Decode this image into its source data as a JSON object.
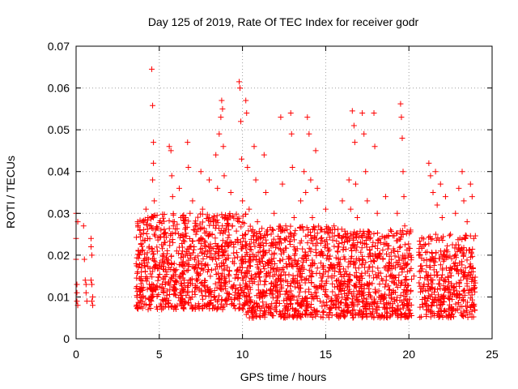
{
  "chart_data": {
    "type": "scatter",
    "title": "Day 125 of 2019, Rate Of TEC Index for receiver godr",
    "xlabel": "GPS time / hours",
    "ylabel": "ROTI / TECUs",
    "xlim": [
      0,
      25
    ],
    "ylim": [
      0,
      0.07
    ],
    "xticks": [
      0,
      5,
      10,
      15,
      20,
      25
    ],
    "xtick_labels": [
      "0",
      "5",
      "10",
      "15",
      "20",
      "25"
    ],
    "yticks": [
      0,
      0.01,
      0.02,
      0.03,
      0.04,
      0.05,
      0.06,
      0.07
    ],
    "ytick_labels": [
      "0",
      "0.01",
      "0.02",
      "0.03",
      "0.04",
      "0.05",
      "0.06",
      "0.07"
    ],
    "grid": true,
    "marker": "+",
    "color": "#ff0000",
    "series": [
      {
        "name": "ROTI",
        "points": [
          [
            0.0,
            0.03
          ],
          [
            0.0,
            0.024
          ],
          [
            0.0,
            0.019
          ],
          [
            0.05,
            0.013
          ],
          [
            0.05,
            0.011
          ],
          [
            0.05,
            0.009
          ],
          [
            0.1,
            0.028
          ],
          [
            0.1,
            0.008
          ],
          [
            0.45,
            0.027
          ],
          [
            0.5,
            0.019
          ],
          [
            0.55,
            0.014
          ],
          [
            0.6,
            0.013
          ],
          [
            0.6,
            0.011
          ],
          [
            0.65,
            0.009
          ],
          [
            0.9,
            0.024
          ],
          [
            0.9,
            0.022
          ],
          [
            0.95,
            0.02
          ],
          [
            0.9,
            0.014
          ],
          [
            0.95,
            0.013
          ],
          [
            1.0,
            0.01
          ],
          [
            0.95,
            0.009
          ],
          [
            1.0,
            0.008
          ],
          [
            3.7,
            0.028
          ],
          [
            3.75,
            0.021
          ],
          [
            3.7,
            0.016
          ],
          [
            3.8,
            0.012
          ],
          [
            3.9,
            0.025
          ],
          [
            3.95,
            0.018
          ],
          [
            4.2,
            0.031
          ],
          [
            4.3,
            0.024
          ],
          [
            4.35,
            0.019
          ],
          [
            4.4,
            0.013
          ],
          [
            4.5,
            0.027
          ],
          [
            4.55,
            0.0645
          ],
          [
            4.6,
            0.0558
          ],
          [
            4.65,
            0.047
          ],
          [
            4.65,
            0.042
          ],
          [
            4.6,
            0.038
          ],
          [
            4.7,
            0.033
          ],
          [
            4.7,
            0.025
          ],
          [
            4.75,
            0.017
          ],
          [
            4.8,
            0.012
          ],
          [
            5.1,
            0.026
          ],
          [
            5.2,
            0.019
          ],
          [
            5.25,
            0.011
          ],
          [
            5.35,
            0.023
          ],
          [
            5.45,
            0.016
          ],
          [
            5.6,
            0.046
          ],
          [
            5.7,
            0.045
          ],
          [
            5.75,
            0.039
          ],
          [
            5.8,
            0.034
          ],
          [
            5.85,
            0.027
          ],
          [
            5.9,
            0.018
          ],
          [
            5.95,
            0.012
          ],
          [
            6.2,
            0.036
          ],
          [
            6.3,
            0.029
          ],
          [
            6.4,
            0.021
          ],
          [
            6.5,
            0.014
          ],
          [
            6.7,
            0.047
          ],
          [
            6.75,
            0.041
          ],
          [
            6.85,
            0.03
          ],
          [
            6.9,
            0.02
          ],
          [
            7.0,
            0.033
          ],
          [
            7.2,
            0.025
          ],
          [
            7.3,
            0.017
          ],
          [
            7.4,
            0.012
          ],
          [
            7.5,
            0.04
          ],
          [
            7.6,
            0.031
          ],
          [
            7.8,
            0.022
          ],
          [
            7.9,
            0.016
          ],
          [
            8.0,
            0.038
          ],
          [
            8.1,
            0.028
          ],
          [
            8.2,
            0.019
          ],
          [
            8.4,
            0.044
          ],
          [
            8.5,
            0.036
          ],
          [
            8.6,
            0.049
          ],
          [
            8.7,
            0.053
          ],
          [
            8.75,
            0.057
          ],
          [
            8.8,
            0.055
          ],
          [
            8.85,
            0.046
          ],
          [
            8.9,
            0.039
          ],
          [
            8.95,
            0.029
          ],
          [
            9.0,
            0.021
          ],
          [
            9.3,
            0.035
          ],
          [
            9.4,
            0.027
          ],
          [
            9.5,
            0.018
          ],
          [
            9.6,
            0.012
          ],
          [
            9.8,
            0.0615
          ],
          [
            9.85,
            0.06
          ],
          [
            9.9,
            0.052
          ],
          [
            9.95,
            0.043
          ],
          [
            10.0,
            0.033
          ],
          [
            10.05,
            0.024
          ],
          [
            10.1,
            0.015
          ],
          [
            10.2,
            0.057
          ],
          [
            10.25,
            0.054
          ],
          [
            10.3,
            0.041
          ],
          [
            10.4,
            0.031
          ],
          [
            10.5,
            0.022
          ],
          [
            10.7,
            0.046
          ],
          [
            10.8,
            0.038
          ],
          [
            10.9,
            0.028
          ],
          [
            11.0,
            0.019
          ],
          [
            11.3,
            0.044
          ],
          [
            11.4,
            0.035
          ],
          [
            11.5,
            0.026
          ],
          [
            11.7,
            0.017
          ],
          [
            11.9,
            0.03
          ],
          [
            12.0,
            0.023
          ],
          [
            12.3,
            0.053
          ],
          [
            12.4,
            0.037
          ],
          [
            12.6,
            0.027
          ],
          [
            12.9,
            0.054
          ],
          [
            12.95,
            0.049
          ],
          [
            13.0,
            0.041
          ],
          [
            13.1,
            0.029
          ],
          [
            13.2,
            0.021
          ],
          [
            13.5,
            0.033
          ],
          [
            13.7,
            0.04
          ],
          [
            13.8,
            0.035
          ],
          [
            13.9,
            0.053
          ],
          [
            14.0,
            0.049
          ],
          [
            14.1,
            0.038
          ],
          [
            14.2,
            0.029
          ],
          [
            14.4,
            0.045
          ],
          [
            14.5,
            0.036
          ],
          [
            14.7,
            0.024
          ],
          [
            15.0,
            0.031
          ],
          [
            15.2,
            0.019
          ],
          [
            15.5,
            0.027
          ],
          [
            15.8,
            0.016
          ],
          [
            16.0,
            0.033
          ],
          [
            16.2,
            0.025
          ],
          [
            16.4,
            0.038
          ],
          [
            16.5,
            0.031
          ],
          [
            16.6,
            0.0545
          ],
          [
            16.7,
            0.051
          ],
          [
            16.75,
            0.047
          ],
          [
            16.8,
            0.037
          ],
          [
            16.9,
            0.029
          ],
          [
            17.2,
            0.054
          ],
          [
            17.3,
            0.049
          ],
          [
            17.4,
            0.04
          ],
          [
            17.5,
            0.033
          ],
          [
            17.6,
            0.025
          ],
          [
            17.9,
            0.054
          ],
          [
            17.95,
            0.046
          ],
          [
            18.1,
            0.03
          ],
          [
            18.3,
            0.023
          ],
          [
            18.6,
            0.034
          ],
          [
            18.9,
            0.026
          ],
          [
            19.3,
            0.03
          ],
          [
            19.5,
            0.0562
          ],
          [
            19.55,
            0.053
          ],
          [
            19.6,
            0.048
          ],
          [
            19.65,
            0.04
          ],
          [
            19.7,
            0.034
          ],
          [
            19.75,
            0.027
          ],
          [
            19.8,
            0.018
          ],
          [
            20.1,
            0.026
          ],
          [
            20.3,
            0.015
          ],
          [
            20.6,
            0.02
          ],
          [
            20.9,
            0.013
          ],
          [
            21.2,
            0.042
          ],
          [
            21.3,
            0.039
          ],
          [
            21.45,
            0.035
          ],
          [
            21.6,
            0.04
          ],
          [
            21.7,
            0.032
          ],
          [
            21.9,
            0.037
          ],
          [
            22.0,
            0.029
          ],
          [
            22.2,
            0.034
          ],
          [
            22.5,
            0.025
          ],
          [
            22.8,
            0.03
          ],
          [
            23.0,
            0.036
          ],
          [
            23.2,
            0.04
          ],
          [
            23.3,
            0.033
          ],
          [
            23.5,
            0.028
          ],
          [
            23.7,
            0.037
          ],
          [
            23.8,
            0.034
          ],
          [
            23.9,
            0.024
          ]
        ]
      }
    ],
    "dense_bands": [
      {
        "x_range": [
          3.6,
          10.2
        ],
        "y_range": [
          0.007,
          0.03
        ],
        "n": 850
      },
      {
        "x_range": [
          10.2,
          16.2
        ],
        "y_range": [
          0.005,
          0.027
        ],
        "n": 800
      },
      {
        "x_range": [
          16.2,
          20.2
        ],
        "y_range": [
          0.005,
          0.026
        ],
        "n": 520
      },
      {
        "x_range": [
          20.6,
          24.0
        ],
        "y_range": [
          0.005,
          0.025
        ],
        "n": 400
      }
    ]
  }
}
